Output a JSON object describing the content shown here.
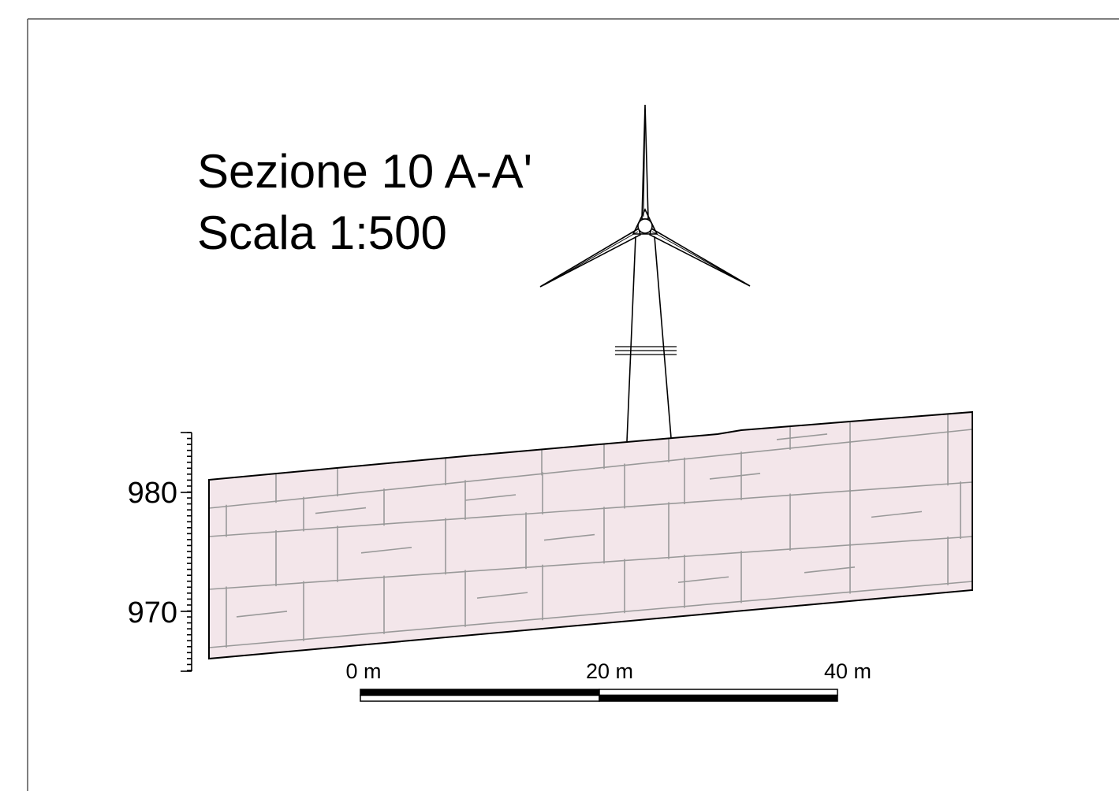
{
  "title": [
    "Sezione 10 A-A'",
    "Scala 1:500"
  ],
  "elevation_axis": {
    "labels": [
      "980",
      "970"
    ]
  },
  "scale_bar": {
    "labels": [
      "0 m",
      "20 m",
      "40 m"
    ]
  }
}
